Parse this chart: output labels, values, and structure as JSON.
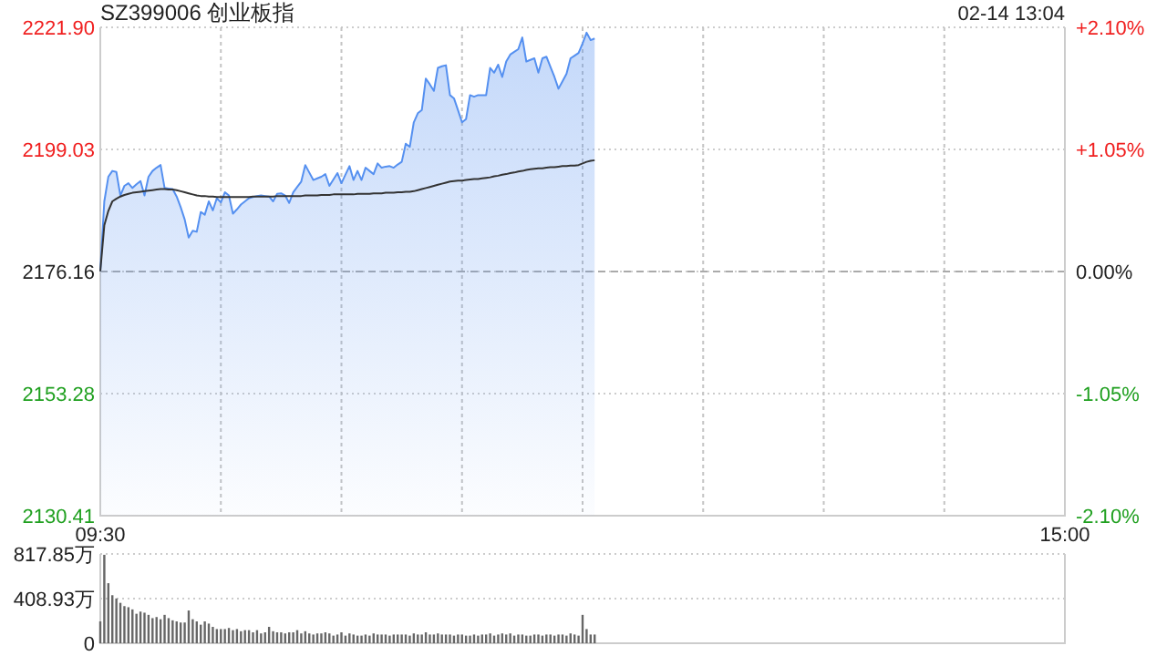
{
  "chart_data": [
    {
      "type": "line",
      "title": "SZ399006 创业板指",
      "annotations": [
        "02-14 13:04"
      ],
      "categories": [
        "09:30",
        null,
        null,
        null,
        null,
        null,
        null,
        null,
        null,
        null,
        null,
        null,
        null,
        null,
        null,
        null,
        null,
        null,
        null,
        null,
        null,
        null,
        null,
        null,
        null,
        null,
        null,
        null,
        null,
        null,
        null,
        null,
        null,
        null,
        null,
        null,
        null,
        null,
        null,
        null,
        null,
        null,
        null,
        null,
        null,
        null,
        null,
        null,
        null,
        null,
        null,
        null,
        null,
        null,
        null,
        null,
        null,
        null,
        null,
        null,
        null,
        null,
        null,
        null,
        null,
        null,
        null,
        null,
        null,
        null,
        null,
        null,
        null,
        null,
        null,
        null,
        null,
        null,
        null,
        null,
        null,
        null,
        null,
        null,
        null,
        null,
        null,
        null,
        null,
        null,
        null,
        null,
        null,
        null,
        null,
        null,
        null,
        null,
        null,
        null,
        null,
        null,
        null,
        null,
        null,
        null,
        null,
        null,
        null,
        null,
        null,
        null,
        null,
        null,
        null,
        null,
        null,
        null,
        null,
        null,
        null,
        null,
        null,
        null,
        null,
        null,
        null,
        null,
        null,
        null,
        null,
        null,
        null,
        null,
        null,
        null,
        null,
        null,
        null,
        null,
        null,
        null,
        null,
        null,
        null,
        null,
        null,
        null,
        null,
        null,
        null,
        null,
        null,
        null,
        null,
        null,
        null,
        null,
        null,
        null,
        null,
        null,
        null,
        null,
        null,
        null,
        null,
        null,
        null,
        null,
        null,
        null,
        null,
        null,
        null,
        null,
        null,
        null,
        null,
        null,
        null,
        null,
        null,
        null,
        null,
        null,
        null,
        null,
        null,
        null,
        null,
        null,
        null,
        null,
        null,
        null,
        null,
        null,
        null,
        null,
        null,
        null,
        null,
        null,
        null,
        null,
        null,
        null,
        null,
        null,
        null,
        null,
        null,
        null,
        null,
        null,
        null,
        null,
        null,
        null,
        null,
        null,
        null,
        null,
        null,
        null,
        null,
        null,
        null,
        null,
        null,
        null,
        null,
        null,
        null,
        null,
        null,
        null,
        null,
        null,
        "15:00"
      ],
      "ylim": [
        2130.41,
        2221.9
      ],
      "yticks": [
        2130.41,
        2153.28,
        2176.16,
        2199.03,
        {
          "value": 2221.9,
          "label": "2221.90"
        }
      ],
      "y2lim": [
        -2.1,
        2.1
      ],
      "y2ticks": [
        {
          "value": -2.1,
          "label": "-2.10%"
        },
        {
          "value": -1.05,
          "label": "-1.05%"
        },
        {
          "value": 0,
          "label": "0.00%"
        },
        {
          "value": 1.05,
          "label": "+1.05%"
        },
        {
          "value": 2.1,
          "label": "+2.10%"
        }
      ],
      "grid": true,
      "ref_lines": [
        {
          "axis": "y",
          "value": 2176.16,
          "color": "#aaaaaa",
          "line_style": "dashed"
        }
      ],
      "series": [
        {
          "type": "area",
          "color": "#5590f0",
          "values": [
            2176.2,
            2189.3,
            2193.9,
            2195.0,
            2194.8,
            2190.4,
            2192.2,
            2192.7,
            2191.8,
            2192.5,
            2193.1,
            2190.4,
            2193.9,
            2195.0,
            2195.6,
            2196.1,
            2191.8,
            2191.7,
            2191.6,
            2190.2,
            2188.2,
            2185.9,
            2182.5,
            2183.8,
            2183.6,
            2187.3,
            2186.8,
            2189.3,
            2187.6,
            2189.9,
            2189.1,
            2191.0,
            2190.4,
            2187.0,
            2187.8,
            2188.7,
            2189.3,
            2189.9,
            2190.1,
            2190.3,
            2190.4,
            2190.3,
            2190.2,
            2189.3,
            2190.7,
            2190.8,
            2190.4,
            2189.0,
            2191.0,
            2192.0,
            2193.0,
            2196.1,
            2194.7,
            2193.3,
            2193.6,
            2193.9,
            2194.4,
            2192.2,
            2193.4,
            2194.6,
            2192.7,
            2194.3,
            2195.9,
            2193.3,
            2195.0,
            2193.3,
            2195.6,
            2195.0,
            2194.4,
            2196.4,
            2195.6,
            2195.8,
            2195.9,
            2195.6,
            2196.2,
            2196.7,
            2200.1,
            2199.5,
            2204.1,
            2205.8,
            2206.4,
            2212.3,
            2211.2,
            2210.0,
            2214.3,
            2214.6,
            2214.8,
            2209.2,
            2208.6,
            2206.4,
            2204.1,
            2204.7,
            2209.2,
            2208.9,
            2209.2,
            2209.2,
            2209.2,
            2214.3,
            2213.4,
            2214.9,
            2212.6,
            2215.5,
            2216.8,
            2217.3,
            2217.8,
            2220.0,
            2215.5,
            2215.8,
            2216.1,
            2213.4,
            2216.1,
            2216.4,
            2214.5,
            2212.6,
            2210.4,
            2211.8,
            2213.2,
            2216.1,
            2216.6,
            2217.1,
            2218.9,
            2220.9,
            2219.5,
            2219.8,
            null,
            null,
            null,
            null,
            null,
            null,
            null,
            null,
            null,
            null,
            null,
            null,
            null,
            null,
            null,
            null,
            null,
            null,
            null,
            null,
            null,
            null,
            null,
            null,
            null,
            null,
            null,
            null,
            null,
            null,
            null,
            null,
            null,
            null,
            null,
            null,
            null,
            null,
            null,
            null,
            null,
            null,
            null,
            null,
            null,
            null,
            null,
            null,
            null,
            null,
            null,
            null,
            null,
            null,
            null,
            null,
            null,
            null,
            null,
            null,
            null,
            null,
            null,
            null,
            null,
            null,
            null,
            null,
            null,
            null,
            null,
            null,
            null,
            null,
            null,
            null,
            null,
            null,
            null,
            null,
            null,
            null,
            null,
            null,
            null,
            null,
            null,
            null,
            null,
            null,
            null,
            null,
            null,
            null,
            null,
            null,
            null,
            null,
            null,
            null,
            null,
            null,
            null,
            null,
            null,
            null,
            null,
            null,
            null,
            null,
            null,
            null,
            null,
            null,
            null,
            null,
            null
          ]
        },
        {
          "color": "#333333",
          "values": [
            2176.2,
            2184.8,
            2187.5,
            2189.3,
            2189.8,
            2190.2,
            2190.5,
            2190.7,
            2190.9,
            2191.0,
            2191.1,
            2191.2,
            2191.3,
            2191.4,
            2191.5,
            2191.6,
            2191.6,
            2191.5,
            2191.5,
            2191.4,
            2191.2,
            2191.0,
            2190.8,
            2190.6,
            2190.4,
            2190.3,
            2190.3,
            2190.2,
            2190.2,
            2190.1,
            2190.1,
            2190.1,
            2190.1,
            2190.1,
            2190.1,
            2190.1,
            2190.1,
            2190.1,
            2190.2,
            2190.2,
            2190.2,
            2190.2,
            2190.2,
            2190.2,
            2190.3,
            2190.3,
            2190.3,
            2190.3,
            2190.3,
            2190.3,
            2190.3,
            2190.4,
            2190.4,
            2190.4,
            2190.4,
            2190.5,
            2190.5,
            2190.5,
            2190.6,
            2190.6,
            2190.6,
            2190.6,
            2190.6,
            2190.6,
            2190.7,
            2190.7,
            2190.7,
            2190.7,
            2190.8,
            2190.8,
            2190.8,
            2190.9,
            2190.9,
            2190.9,
            2191.0,
            2191.0,
            2191.1,
            2191.1,
            2191.2,
            2191.4,
            2191.6,
            2191.8,
            2192.0,
            2192.2,
            2192.4,
            2192.6,
            2192.8,
            2193.0,
            2193.1,
            2193.2,
            2193.2,
            2193.3,
            2193.4,
            2193.5,
            2193.5,
            2193.6,
            2193.7,
            2193.8,
            2194.0,
            2194.1,
            2194.3,
            2194.4,
            2194.6,
            2194.7,
            2194.9,
            2195.0,
            2195.2,
            2195.3,
            2195.4,
            2195.5,
            2195.5,
            2195.6,
            2195.7,
            2195.7,
            2195.8,
            2195.9,
            2195.9,
            2196.0,
            2196.0,
            2196.1,
            2196.4,
            2196.7,
            2196.9,
            2197.0,
            null,
            null,
            null,
            null,
            null,
            null,
            null,
            null,
            null,
            null,
            null,
            null,
            null,
            null,
            null,
            null,
            null,
            null,
            null,
            null,
            null,
            null,
            null,
            null,
            null,
            null,
            null,
            null,
            null,
            null,
            null,
            null,
            null,
            null,
            null,
            null,
            null,
            null,
            null,
            null,
            null,
            null,
            null,
            null,
            null,
            null,
            null,
            null,
            null,
            null,
            null,
            null,
            null,
            null,
            null,
            null,
            null,
            null,
            null,
            null,
            null,
            null,
            null,
            null,
            null,
            null,
            null,
            null,
            null,
            null,
            null,
            null,
            null,
            null,
            null,
            null,
            null,
            null,
            null,
            null,
            null,
            null,
            null,
            null,
            null,
            null,
            null,
            null,
            null,
            null,
            null,
            null,
            null,
            null,
            null,
            null,
            null,
            null,
            null,
            null,
            null,
            null,
            null,
            null,
            null,
            null,
            null,
            null,
            null,
            null,
            null,
            null,
            null,
            null,
            null,
            null,
            null
          ]
        }
      ]
    },
    {
      "type": "bar",
      "tick_labels": "y",
      "grid": "y",
      "categories": [
        null,
        null,
        null,
        null,
        null,
        null,
        null,
        null,
        null,
        null,
        null,
        null,
        null,
        null,
        null,
        null,
        null,
        null,
        null,
        null,
        null,
        null,
        null,
        null,
        null,
        null,
        null,
        null,
        null,
        null,
        null,
        null,
        null,
        null,
        null,
        null,
        null,
        null,
        null,
        null,
        null,
        null,
        null,
        null,
        null,
        null,
        null,
        null,
        null,
        null,
        null,
        null,
        null,
        null,
        null,
        null,
        null,
        null,
        null,
        null,
        null,
        null,
        null,
        null,
        null,
        null,
        null,
        null,
        null,
        null,
        null,
        null,
        null,
        null,
        null,
        null,
        null,
        null,
        null,
        null,
        null,
        null,
        null,
        null,
        null,
        null,
        null,
        null,
        null,
        null,
        null,
        null,
        null,
        null,
        null,
        null,
        null,
        null,
        null,
        null,
        null,
        null,
        null,
        null,
        null,
        null,
        null,
        null,
        null,
        null,
        null,
        null,
        null,
        null,
        null,
        null,
        null,
        null,
        null,
        null,
        null,
        null,
        null,
        null,
        null,
        null,
        null,
        null,
        null,
        null,
        null,
        null,
        null,
        null,
        null,
        null,
        null,
        null,
        null,
        null,
        null,
        null,
        null,
        null,
        null,
        null,
        null,
        null,
        null,
        null,
        null,
        null,
        null,
        null,
        null,
        null,
        null,
        null,
        null,
        null,
        null,
        null,
        null,
        null,
        null,
        null,
        null,
        null,
        null,
        null,
        null,
        null,
        null,
        null,
        null,
        null,
        null,
        null,
        null,
        null,
        null,
        null,
        null,
        null,
        null,
        null,
        null,
        null,
        null,
        null,
        null,
        null,
        null,
        null,
        null,
        null,
        null,
        null,
        null,
        null,
        null,
        null,
        null,
        null,
        null,
        null,
        null,
        null,
        null,
        null,
        null,
        null,
        null,
        null,
        null,
        null,
        null,
        null,
        null,
        null,
        null,
        null,
        null,
        null,
        null,
        null,
        null,
        null,
        null,
        null,
        null,
        null,
        null,
        null,
        null,
        null,
        null,
        null,
        null,
        null,
        null
      ],
      "ylim": [
        0,
        817.85
      ],
      "yticks": [
        0,
        {
          "value": 408.93,
          "label": "408.93万"
        },
        {
          "value": 817.85,
          "label": "817.85万"
        }
      ],
      "series": [
        {
          "color": "#666666",
          "values": [
            200,
            810,
            550,
            440,
            410,
            370,
            340,
            330,
            310,
            270,
            290,
            280,
            260,
            230,
            240,
            220,
            260,
            230,
            210,
            200,
            190,
            190,
            300,
            220,
            200,
            170,
            200,
            180,
            150,
            130,
            130,
            130,
            140,
            120,
            130,
            110,
            120,
            120,
            100,
            120,
            90,
            100,
            150,
            110,
            100,
            100,
            90,
            100,
            100,
            120,
            90,
            110,
            90,
            80,
            90,
            90,
            100,
            90,
            70,
            80,
            100,
            70,
            90,
            80,
            70,
            70,
            80,
            70,
            90,
            80,
            80,
            80,
            70,
            80,
            80,
            80,
            80,
            70,
            90,
            80,
            80,
            100,
            80,
            80,
            90,
            80,
            80,
            80,
            70,
            80,
            80,
            70,
            70,
            80,
            70,
            80,
            80,
            90,
            70,
            80,
            90,
            80,
            90,
            70,
            80,
            80,
            70,
            70,
            80,
            80,
            70,
            80,
            80,
            70,
            80,
            80,
            70,
            90,
            80,
            70,
            260,
            130,
            80,
            80,
            null,
            null,
            null,
            null,
            null,
            null,
            null,
            null,
            null,
            null,
            null,
            null,
            null,
            null,
            null,
            null,
            null,
            null,
            null,
            null,
            null,
            null,
            null,
            null,
            null,
            null,
            null,
            null,
            null,
            null,
            null,
            null,
            null,
            null,
            null,
            null,
            null,
            null,
            null,
            null,
            null,
            null,
            null,
            null,
            null,
            null,
            null,
            null,
            null,
            null,
            null,
            null,
            null,
            null,
            null,
            null,
            null,
            null,
            null,
            null,
            null,
            null,
            null,
            null,
            null,
            null,
            null,
            null,
            null,
            null,
            null,
            null,
            null,
            null,
            null,
            null,
            null,
            null,
            null,
            null,
            null,
            null,
            null,
            null,
            null,
            null,
            null,
            null,
            null,
            null,
            null,
            null,
            null,
            null,
            null,
            null,
            null,
            null,
            null,
            null,
            null,
            null,
            null,
            null,
            null,
            null,
            null,
            null,
            null,
            null,
            null,
            null,
            null,
            null,
            null,
            null,
            null
          ]
        }
      ]
    }
  ]
}
